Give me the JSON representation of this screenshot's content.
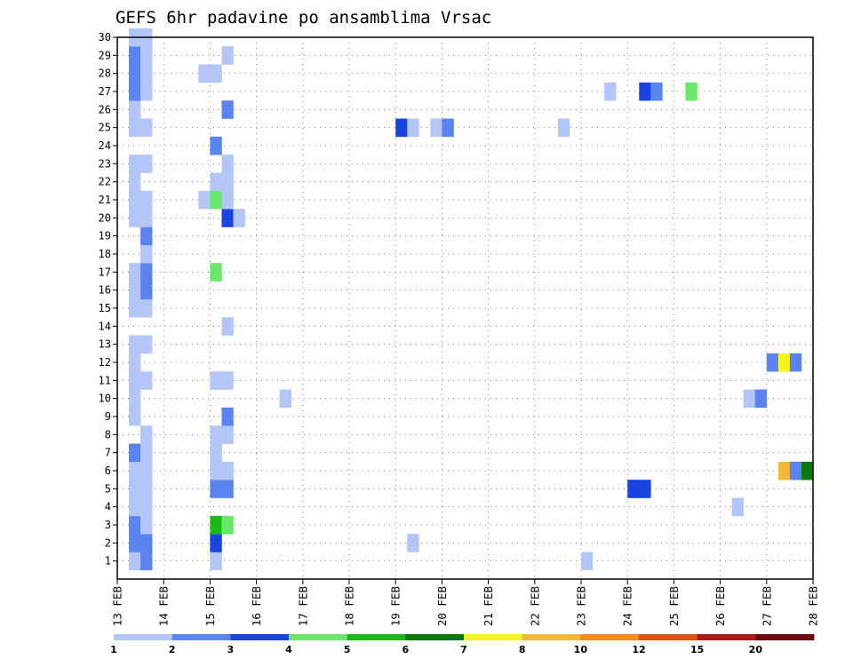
{
  "chart_data": {
    "type": "heatmap",
    "title": "GEFS 6hr padavine po ansamblima Vrsac",
    "xlabel": "",
    "ylabel": "",
    "x_ticks": [
      "13 FEB",
      "14 FEB",
      "15 FEB",
      "16 FEB",
      "17 FEB",
      "18 FEB",
      "19 FEB",
      "20 FEB",
      "21 FEB",
      "22 FEB",
      "23 FEB",
      "24 FEB",
      "25 FEB",
      "26 FEB",
      "27 FEB",
      "28 FEB"
    ],
    "y_ticks": [
      "1",
      "2",
      "3",
      "4",
      "5",
      "6",
      "7",
      "8",
      "9",
      "10",
      "11",
      "12",
      "13",
      "14",
      "15",
      "16",
      "17",
      "18",
      "19",
      "20",
      "21",
      "22",
      "23",
      "24",
      "25",
      "26",
      "27",
      "28",
      "29",
      "30"
    ],
    "ylim": [
      0,
      30
    ],
    "xlim_days": [
      13,
      28
    ],
    "grid": true,
    "legend": {
      "placement": "bottom",
      "labels": [
        "1",
        "2",
        "3",
        "4",
        "5",
        "6",
        "7",
        "8",
        "10",
        "12",
        "15",
        "20"
      ],
      "colors": [
        "#b3c6f7",
        "#5a84ef",
        "#1a44e0",
        "#6ae86a",
        "#1cb81c",
        "#0a7a0a",
        "#f5f51a",
        "#f5b83a",
        "#f58c1a",
        "#e05010",
        "#b01818",
        "#6e0a0a"
      ]
    },
    "bins": {
      "1": "#b3c6f7",
      "2": "#5a84ef",
      "3": "#1a44e0",
      "4": "#6ae86a",
      "5": "#1cb81c",
      "6": "#0a7a0a",
      "7": "#f5f51a",
      "8": "#f5b83a",
      "10": "#f58c1a",
      "12": "#e05010",
      "15": "#b01818",
      "20": "#6e0a0a"
    },
    "cells": [
      {
        "t": "13 FEB 06Z",
        "member": 1,
        "bin": 1
      },
      {
        "t": "13 FEB 12Z",
        "member": 1,
        "bin": 2
      },
      {
        "t": "13 FEB 06Z",
        "member": 2,
        "bin": 2
      },
      {
        "t": "13 FEB 12Z",
        "member": 2,
        "bin": 2
      },
      {
        "t": "13 FEB 06Z",
        "member": 3,
        "bin": 2
      },
      {
        "t": "13 FEB 12Z",
        "member": 3,
        "bin": 1
      },
      {
        "t": "13 FEB 06Z",
        "member": 4,
        "bin": 1
      },
      {
        "t": "13 FEB 12Z",
        "member": 4,
        "bin": 1
      },
      {
        "t": "13 FEB 06Z",
        "member": 5,
        "bin": 1
      },
      {
        "t": "13 FEB 12Z",
        "member": 5,
        "bin": 1
      },
      {
        "t": "13 FEB 06Z",
        "member": 6,
        "bin": 1
      },
      {
        "t": "13 FEB 12Z",
        "member": 6,
        "bin": 1
      },
      {
        "t": "13 FEB 06Z",
        "member": 7,
        "bin": 2
      },
      {
        "t": "13 FEB 12Z",
        "member": 7,
        "bin": 1
      },
      {
        "t": "13 FEB 12Z",
        "member": 8,
        "bin": 1
      },
      {
        "t": "13 FEB 06Z",
        "member": 9,
        "bin": 1
      },
      {
        "t": "13 FEB 06Z",
        "member": 10,
        "bin": 1
      },
      {
        "t": "13 FEB 06Z",
        "member": 11,
        "bin": 1
      },
      {
        "t": "13 FEB 12Z",
        "member": 11,
        "bin": 1
      },
      {
        "t": "13 FEB 06Z",
        "member": 12,
        "bin": 1
      },
      {
        "t": "13 FEB 06Z",
        "member": 13,
        "bin": 1
      },
      {
        "t": "13 FEB 12Z",
        "member": 13,
        "bin": 1
      },
      {
        "t": "13 FEB 06Z",
        "member": 15,
        "bin": 1
      },
      {
        "t": "13 FEB 12Z",
        "member": 15,
        "bin": 1
      },
      {
        "t": "13 FEB 06Z",
        "member": 16,
        "bin": 1
      },
      {
        "t": "13 FEB 12Z",
        "member": 16,
        "bin": 2
      },
      {
        "t": "13 FEB 06Z",
        "member": 17,
        "bin": 1
      },
      {
        "t": "13 FEB 12Z",
        "member": 17,
        "bin": 2
      },
      {
        "t": "13 FEB 12Z",
        "member": 18,
        "bin": 1
      },
      {
        "t": "13 FEB 12Z",
        "member": 19,
        "bin": 2
      },
      {
        "t": "13 FEB 06Z",
        "member": 20,
        "bin": 1
      },
      {
        "t": "13 FEB 12Z",
        "member": 20,
        "bin": 1
      },
      {
        "t": "13 FEB 06Z",
        "member": 21,
        "bin": 1
      },
      {
        "t": "13 FEB 12Z",
        "member": 21,
        "bin": 1
      },
      {
        "t": "13 FEB 06Z",
        "member": 22,
        "bin": 1
      },
      {
        "t": "13 FEB 06Z",
        "member": 23,
        "bin": 1
      },
      {
        "t": "13 FEB 12Z",
        "member": 23,
        "bin": 1
      },
      {
        "t": "13 FEB 06Z",
        "member": 25,
        "bin": 1
      },
      {
        "t": "13 FEB 12Z",
        "member": 25,
        "bin": 1
      },
      {
        "t": "13 FEB 06Z",
        "member": 26,
        "bin": 1
      },
      {
        "t": "13 FEB 06Z",
        "member": 27,
        "bin": 2
      },
      {
        "t": "13 FEB 12Z",
        "member": 27,
        "bin": 1
      },
      {
        "t": "13 FEB 06Z",
        "member": 28,
        "bin": 2
      },
      {
        "t": "13 FEB 12Z",
        "member": 28,
        "bin": 1
      },
      {
        "t": "13 FEB 06Z",
        "member": 29,
        "bin": 2
      },
      {
        "t": "13 FEB 12Z",
        "member": 29,
        "bin": 1
      },
      {
        "t": "13 FEB 06Z",
        "member": 30,
        "bin": 1
      },
      {
        "t": "13 FEB 12Z",
        "member": 30,
        "bin": 1
      },
      {
        "t": "14 FEB 18Z",
        "member": 28,
        "bin": 1
      },
      {
        "t": "15 FEB 00Z",
        "member": 28,
        "bin": 1
      },
      {
        "t": "14 FEB 18Z",
        "member": 21,
        "bin": 1
      },
      {
        "t": "15 FEB 00Z",
        "member": 1,
        "bin": 1
      },
      {
        "t": "15 FEB 00Z",
        "member": 2,
        "bin": 3
      },
      {
        "t": "15 FEB 00Z",
        "member": 3,
        "bin": 5
      },
      {
        "t": "15 FEB 06Z",
        "member": 3,
        "bin": 4
      },
      {
        "t": "15 FEB 00Z",
        "member": 5,
        "bin": 2
      },
      {
        "t": "15 FEB 06Z",
        "member": 5,
        "bin": 2
      },
      {
        "t": "15 FEB 00Z",
        "member": 6,
        "bin": 1
      },
      {
        "t": "15 FEB 06Z",
        "member": 6,
        "bin": 1
      },
      {
        "t": "15 FEB 00Z",
        "member": 7,
        "bin": 1
      },
      {
        "t": "15 FEB 00Z",
        "member": 8,
        "bin": 1
      },
      {
        "t": "15 FEB 06Z",
        "member": 8,
        "bin": 1
      },
      {
        "t": "15 FEB 06Z",
        "member": 9,
        "bin": 2
      },
      {
        "t": "15 FEB 00Z",
        "member": 11,
        "bin": 1
      },
      {
        "t": "15 FEB 06Z",
        "member": 11,
        "bin": 1
      },
      {
        "t": "15 FEB 06Z",
        "member": 14,
        "bin": 1
      },
      {
        "t": "15 FEB 00Z",
        "member": 17,
        "bin": 4
      },
      {
        "t": "15 FEB 06Z",
        "member": 20,
        "bin": 3
      },
      {
        "t": "15 FEB 12Z",
        "member": 20,
        "bin": 1
      },
      {
        "t": "15 FEB 00Z",
        "member": 21,
        "bin": 4
      },
      {
        "t": "15 FEB 06Z",
        "member": 21,
        "bin": 1
      },
      {
        "t": "15 FEB 00Z",
        "member": 22,
        "bin": 1
      },
      {
        "t": "15 FEB 06Z",
        "member": 22,
        "bin": 1
      },
      {
        "t": "15 FEB 06Z",
        "member": 23,
        "bin": 1
      },
      {
        "t": "15 FEB 00Z",
        "member": 24,
        "bin": 2
      },
      {
        "t": "15 FEB 06Z",
        "member": 26,
        "bin": 2
      },
      {
        "t": "15 FEB 06Z",
        "member": 29,
        "bin": 1
      },
      {
        "t": "16 FEB 12Z",
        "member": 10,
        "bin": 1
      },
      {
        "t": "19 FEB 00Z",
        "member": 25,
        "bin": 3
      },
      {
        "t": "19 FEB 06Z",
        "member": 25,
        "bin": 1
      },
      {
        "t": "19 FEB 06Z",
        "member": 2,
        "bin": 1
      },
      {
        "t": "19 FEB 18Z",
        "member": 25,
        "bin": 1
      },
      {
        "t": "20 FEB 00Z",
        "member": 25,
        "bin": 2
      },
      {
        "t": "22 FEB 12Z",
        "member": 25,
        "bin": 1
      },
      {
        "t": "23 FEB 00Z",
        "member": 1,
        "bin": 1
      },
      {
        "t": "23 FEB 12Z",
        "member": 27,
        "bin": 1
      },
      {
        "t": "24 FEB 00Z",
        "member": 5,
        "bin": 3
      },
      {
        "t": "24 FEB 06Z",
        "member": 5,
        "bin": 3
      },
      {
        "t": "24 FEB 06Z",
        "member": 27,
        "bin": 3
      },
      {
        "t": "24 FEB 12Z",
        "member": 27,
        "bin": 2
      },
      {
        "t": "25 FEB 06Z",
        "member": 27,
        "bin": 4
      },
      {
        "t": "26 FEB 06Z",
        "member": 4,
        "bin": 1
      },
      {
        "t": "26 FEB 12Z",
        "member": 10,
        "bin": 1
      },
      {
        "t": "26 FEB 18Z",
        "member": 10,
        "bin": 2
      },
      {
        "t": "27 FEB 00Z",
        "member": 12,
        "bin": 2
      },
      {
        "t": "27 FEB 06Z",
        "member": 12,
        "bin": 7
      },
      {
        "t": "27 FEB 12Z",
        "member": 12,
        "bin": 2
      },
      {
        "t": "27 FEB 06Z",
        "member": 6,
        "bin": 8
      },
      {
        "t": "27 FEB 12Z",
        "member": 6,
        "bin": 2
      },
      {
        "t": "27 FEB 18Z",
        "member": 6,
        "bin": 6
      }
    ]
  }
}
